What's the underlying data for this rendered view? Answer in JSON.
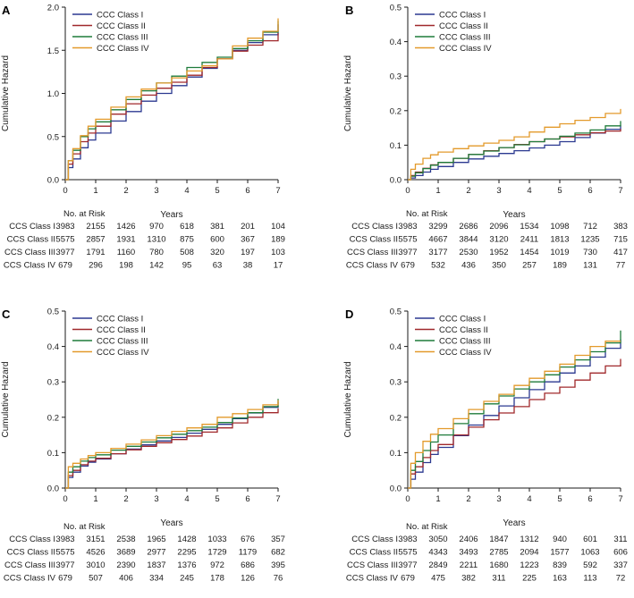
{
  "colors": {
    "class_i": "#2b3990",
    "class_ii": "#a0282b",
    "class_iii": "#1e7b3a",
    "class_iv": "#e39a2b",
    "axis": "#1a1a1a"
  },
  "chart_data": [
    {
      "type": "line",
      "panel": "A",
      "xlabel": "Years",
      "ylabel": "Cumulative Hazard",
      "xlim": [
        0,
        7
      ],
      "ylim": [
        0,
        2.0
      ],
      "xticks": [
        "0",
        "1",
        "2",
        "3",
        "4",
        "5",
        "6",
        "7"
      ],
      "yticks": [
        "0.0",
        "0.5",
        "1.0",
        "1.5",
        "2.0"
      ],
      "ytick_values": [
        0,
        0.5,
        1.0,
        1.5,
        2.0
      ],
      "legend": [
        "CCC Class I",
        "CCC Class II",
        "CCC Class III",
        "CCC Class IV"
      ],
      "x": [
        0,
        0.1,
        0.25,
        0.5,
        0.75,
        1,
        1.5,
        2,
        2.5,
        3,
        3.5,
        4,
        4.5,
        5,
        5.5,
        6,
        6.5,
        7
      ],
      "series": [
        {
          "name": "CCC Class I",
          "values": [
            0,
            0.14,
            0.24,
            0.37,
            0.46,
            0.54,
            0.68,
            0.79,
            0.91,
            1.0,
            1.09,
            1.19,
            1.29,
            1.4,
            1.5,
            1.59,
            1.68,
            1.8
          ]
        },
        {
          "name": "CCC Class II",
          "values": [
            0,
            0.18,
            0.3,
            0.44,
            0.54,
            0.62,
            0.76,
            0.88,
            0.98,
            1.06,
            1.13,
            1.21,
            1.3,
            1.4,
            1.49,
            1.56,
            1.61,
            1.7
          ]
        },
        {
          "name": "CCC Class III",
          "values": [
            0,
            0.22,
            0.34,
            0.5,
            0.59,
            0.67,
            0.81,
            0.93,
            1.03,
            1.12,
            1.2,
            1.3,
            1.36,
            1.42,
            1.52,
            1.61,
            1.71,
            1.84
          ]
        },
        {
          "name": "CCC Class IV",
          "values": [
            0,
            0.22,
            0.36,
            0.51,
            0.62,
            0.7,
            0.84,
            0.96,
            1.05,
            1.12,
            1.18,
            1.26,
            1.32,
            1.4,
            1.55,
            1.64,
            1.72,
            1.87
          ]
        }
      ],
      "risk_table": {
        "title": "No. at Risk",
        "rows": [
          {
            "label": "CCS Class I",
            "values": [
              "3983",
              "2155",
              "1426",
              "970",
              "618",
              "381",
              "201",
              "104"
            ]
          },
          {
            "label": "CCS Class II",
            "values": [
              "5575",
              "2857",
              "1931",
              "1310",
              "875",
              "600",
              "367",
              "189"
            ]
          },
          {
            "label": "CCS Class III",
            "values": [
              "3977",
              "1791",
              "1160",
              "780",
              "508",
              "320",
              "197",
              "103"
            ]
          },
          {
            "label": "CCS Class IV",
            "values": [
              "679",
              "296",
              "198",
              "142",
              "95",
              "63",
              "38",
              "17"
            ]
          }
        ]
      }
    },
    {
      "type": "line",
      "panel": "B",
      "xlabel": "Years",
      "ylabel": "Cumulative Hazard",
      "xlim": [
        0,
        7
      ],
      "ylim": [
        0,
        0.5
      ],
      "xticks": [
        "0",
        "1",
        "2",
        "3",
        "4",
        "5",
        "6",
        "7"
      ],
      "yticks": [
        "0.0",
        "0.1",
        "0.2",
        "0.3",
        "0.4",
        "0.5"
      ],
      "ytick_values": [
        0,
        0.1,
        0.2,
        0.3,
        0.4,
        0.5
      ],
      "legend": [
        "CCC Class I",
        "CCC Class II",
        "CCC Class III",
        "CCC Class IV"
      ],
      "x": [
        0,
        0.1,
        0.25,
        0.5,
        0.75,
        1,
        1.5,
        2,
        2.5,
        3,
        3.5,
        4,
        4.5,
        5,
        5.5,
        6,
        6.5,
        7
      ],
      "series": [
        {
          "name": "CCC Class I",
          "values": [
            0,
            0.005,
            0.012,
            0.022,
            0.03,
            0.038,
            0.05,
            0.06,
            0.068,
            0.076,
            0.084,
            0.092,
            0.1,
            0.11,
            0.122,
            0.135,
            0.146,
            0.158
          ]
        },
        {
          "name": "CCC Class II",
          "values": [
            0,
            0.012,
            0.022,
            0.033,
            0.043,
            0.05,
            0.062,
            0.073,
            0.084,
            0.093,
            0.102,
            0.11,
            0.118,
            0.124,
            0.13,
            0.136,
            0.141,
            0.147
          ]
        },
        {
          "name": "CCC Class III",
          "values": [
            0,
            0.01,
            0.02,
            0.032,
            0.042,
            0.05,
            0.062,
            0.073,
            0.083,
            0.093,
            0.101,
            0.11,
            0.118,
            0.126,
            0.135,
            0.144,
            0.156,
            0.17
          ]
        },
        {
          "name": "CCC Class IV",
          "values": [
            0,
            0.03,
            0.045,
            0.062,
            0.072,
            0.08,
            0.09,
            0.098,
            0.106,
            0.114,
            0.124,
            0.138,
            0.152,
            0.162,
            0.172,
            0.18,
            0.192,
            0.205
          ]
        }
      ],
      "risk_table": {
        "title": "No. at Risk",
        "rows": [
          {
            "label": "CCS Class I",
            "values": [
              "3983",
              "3299",
              "2686",
              "2096",
              "1534",
              "1098",
              "712",
              "383"
            ]
          },
          {
            "label": "CCS Class II",
            "values": [
              "5575",
              "4667",
              "3844",
              "3120",
              "2411",
              "1813",
              "1235",
              "715"
            ]
          },
          {
            "label": "CCS Class III",
            "values": [
              "3977",
              "3177",
              "2530",
              "1952",
              "1454",
              "1019",
              "730",
              "417"
            ]
          },
          {
            "label": "CCS Class IV",
            "values": [
              "679",
              "532",
              "436",
              "350",
              "257",
              "189",
              "131",
              "77"
            ]
          }
        ]
      }
    },
    {
      "type": "line",
      "panel": "C",
      "xlabel": "Years",
      "ylabel": "Cumulative Hazard",
      "xlim": [
        0,
        7
      ],
      "ylim": [
        0,
        0.5
      ],
      "xticks": [
        "0",
        "1",
        "2",
        "3",
        "4",
        "5",
        "6",
        "7"
      ],
      "yticks": [
        "0.0",
        "0.1",
        "0.2",
        "0.3",
        "0.4",
        "0.5"
      ],
      "ytick_values": [
        0,
        0.1,
        0.2,
        0.3,
        0.4,
        0.5
      ],
      "legend": [
        "CCC Class I",
        "CCC Class II",
        "CCC Class III",
        "CCC Class IV"
      ],
      "x": [
        0,
        0.1,
        0.25,
        0.5,
        0.75,
        1,
        1.5,
        2,
        2.5,
        3,
        3.5,
        4,
        4.5,
        5,
        5.5,
        6,
        6.5,
        7
      ],
      "series": [
        {
          "name": "CCC Class I",
          "values": [
            0,
            0.03,
            0.045,
            0.062,
            0.073,
            0.082,
            0.097,
            0.11,
            0.122,
            0.133,
            0.143,
            0.155,
            0.166,
            0.18,
            0.196,
            0.212,
            0.228,
            0.245
          ]
        },
        {
          "name": "CCC Class II",
          "values": [
            0,
            0.035,
            0.05,
            0.066,
            0.076,
            0.084,
            0.097,
            0.108,
            0.118,
            0.128,
            0.137,
            0.147,
            0.158,
            0.17,
            0.184,
            0.2,
            0.213,
            0.225
          ]
        },
        {
          "name": "CCC Class III",
          "values": [
            0,
            0.045,
            0.06,
            0.076,
            0.086,
            0.094,
            0.107,
            0.118,
            0.13,
            0.142,
            0.152,
            0.162,
            0.172,
            0.185,
            0.198,
            0.213,
            0.23,
            0.252
          ]
        },
        {
          "name": "CCC Class IV",
          "values": [
            0,
            0.06,
            0.07,
            0.082,
            0.092,
            0.1,
            0.112,
            0.124,
            0.136,
            0.148,
            0.16,
            0.17,
            0.18,
            0.2,
            0.21,
            0.222,
            0.235,
            0.248
          ]
        }
      ],
      "risk_table": {
        "title": "No. at Risk",
        "rows": [
          {
            "label": "CCS Class I",
            "values": [
              "3983",
              "3151",
              "2538",
              "1965",
              "1428",
              "1033",
              "676",
              "357"
            ]
          },
          {
            "label": "CCS Class II",
            "values": [
              "5575",
              "4526",
              "3689",
              "2977",
              "2295",
              "1729",
              "1179",
              "682"
            ]
          },
          {
            "label": "CCS Class III",
            "values": [
              "3977",
              "3010",
              "2390",
              "1837",
              "1376",
              "972",
              "686",
              "395"
            ]
          },
          {
            "label": "CCS Class IV",
            "values": [
              "679",
              "507",
              "406",
              "334",
              "245",
              "178",
              "126",
              "76"
            ]
          }
        ]
      }
    },
    {
      "type": "line",
      "panel": "D",
      "xlabel": "Years",
      "ylabel": "Cumulative Hazard",
      "xlim": [
        0,
        7
      ],
      "ylim": [
        0,
        0.5
      ],
      "xticks": [
        "0",
        "1",
        "2",
        "3",
        "4",
        "5",
        "6",
        "7"
      ],
      "yticks": [
        "0.0",
        "0.1",
        "0.2",
        "0.3",
        "0.4",
        "0.5"
      ],
      "ytick_values": [
        0,
        0.1,
        0.2,
        0.3,
        0.4,
        0.5
      ],
      "legend": [
        "CCC Class I",
        "CCC Class II",
        "CCC Class III",
        "CCC Class IV"
      ],
      "x": [
        0,
        0.1,
        0.25,
        0.5,
        0.75,
        1,
        1.5,
        2,
        2.5,
        3,
        3.5,
        4,
        4.5,
        5,
        5.5,
        6,
        6.5,
        7
      ],
      "series": [
        {
          "name": "CCC Class I",
          "values": [
            0,
            0.025,
            0.045,
            0.072,
            0.095,
            0.115,
            0.148,
            0.178,
            0.205,
            0.232,
            0.255,
            0.278,
            0.3,
            0.325,
            0.345,
            0.37,
            0.395,
            0.42
          ]
        },
        {
          "name": "CCC Class II",
          "values": [
            0,
            0.04,
            0.06,
            0.086,
            0.106,
            0.123,
            0.15,
            0.172,
            0.193,
            0.212,
            0.23,
            0.25,
            0.268,
            0.285,
            0.305,
            0.325,
            0.345,
            0.365
          ]
        },
        {
          "name": "CCC Class III",
          "values": [
            0,
            0.05,
            0.075,
            0.106,
            0.13,
            0.15,
            0.182,
            0.21,
            0.238,
            0.26,
            0.28,
            0.3,
            0.32,
            0.342,
            0.362,
            0.385,
            0.41,
            0.445
          ]
        },
        {
          "name": "CCC Class IV",
          "values": [
            0,
            0.07,
            0.1,
            0.132,
            0.152,
            0.168,
            0.196,
            0.222,
            0.245,
            0.265,
            0.29,
            0.31,
            0.33,
            0.35,
            0.375,
            0.4,
            0.415,
            0.415
          ]
        }
      ],
      "risk_table": {
        "title": "No. at Risk",
        "rows": [
          {
            "label": "CCS Class I",
            "values": [
              "3983",
              "3050",
              "2406",
              "1847",
              "1312",
              "940",
              "601",
              "311"
            ]
          },
          {
            "label": "CCS Class II",
            "values": [
              "5575",
              "4343",
              "3493",
              "2785",
              "2094",
              "1577",
              "1063",
              "606"
            ]
          },
          {
            "label": "CCS Class III",
            "values": [
              "3977",
              "2849",
              "2211",
              "1680",
              "1223",
              "839",
              "592",
              "337"
            ]
          },
          {
            "label": "CCS Class IV",
            "values": [
              "679",
              "475",
              "382",
              "311",
              "225",
              "163",
              "113",
              "72"
            ]
          }
        ]
      }
    }
  ]
}
